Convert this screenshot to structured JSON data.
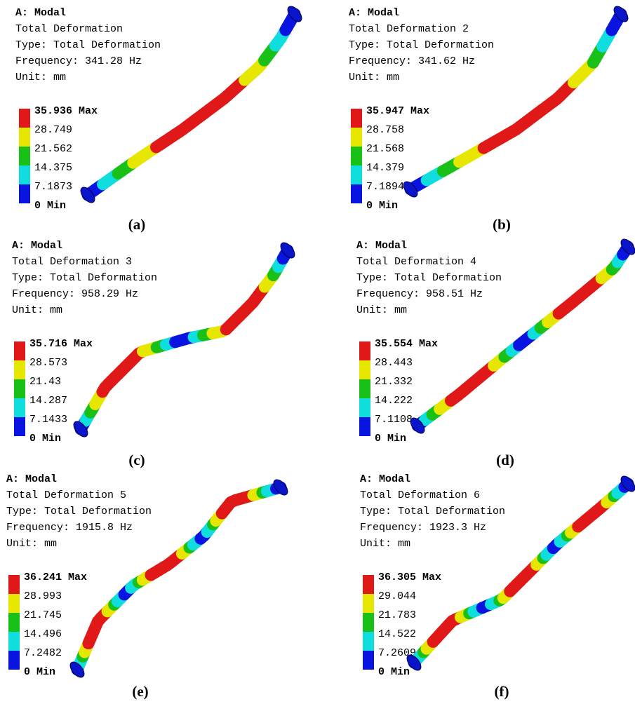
{
  "panels": [
    {
      "header": "A: Modal",
      "name": "Total Deformation",
      "type": "Type: Total Deformation",
      "frequency": "Frequency: 341.28 Hz",
      "unit": "Unit: mm",
      "legend": [
        "35.936 Max",
        "28.749",
        "21.562",
        "14.375",
        "7.1873",
        "0 Min"
      ],
      "caption": "(a)"
    },
    {
      "header": "A: Modal",
      "name": "Total Deformation 2",
      "type": "Type: Total Deformation",
      "frequency": "Frequency: 341.62 Hz",
      "unit": "Unit: mm",
      "legend": [
        "35.947 Max",
        "28.758",
        "21.568",
        "14.379",
        "7.1894",
        "0 Min"
      ],
      "caption": "(b)"
    },
    {
      "header": "A: Modal",
      "name": "Total Deformation 3",
      "type": "Type: Total Deformation",
      "frequency": "Frequency: 958.29 Hz",
      "unit": "Unit: mm",
      "legend": [
        "35.716 Max",
        "28.573",
        "21.43",
        "14.287",
        "7.1433",
        "0 Min"
      ],
      "caption": "(c)"
    },
    {
      "header": "A: Modal",
      "name": "Total Deformation 4",
      "type": "Type: Total Deformation",
      "frequency": "Frequency: 958.51 Hz",
      "unit": "Unit: mm",
      "legend": [
        "35.554 Max",
        "28.443",
        "21.332",
        "14.222",
        "7.1108",
        "0 Min"
      ],
      "caption": "(d)"
    },
    {
      "header": "A: Modal",
      "name": "Total Deformation 5",
      "type": "Type: Total Deformation",
      "frequency": "Frequency: 1915.8 Hz",
      "unit": "Unit: mm",
      "legend": [
        "36.241 Max",
        "28.993",
        "21.745",
        "14.496",
        "7.2482",
        "0 Min"
      ],
      "caption": "(e)"
    },
    {
      "header": "A: Modal",
      "name": "Total Deformation 6",
      "type": "Type: Total Deformation",
      "frequency": "Frequency: 1923.3 Hz",
      "unit": "Unit: mm",
      "legend": [
        "36.305 Max",
        "29.044",
        "21.783",
        "14.522",
        "7.2609",
        "0 Min"
      ],
      "caption": "(f)"
    }
  ]
}
